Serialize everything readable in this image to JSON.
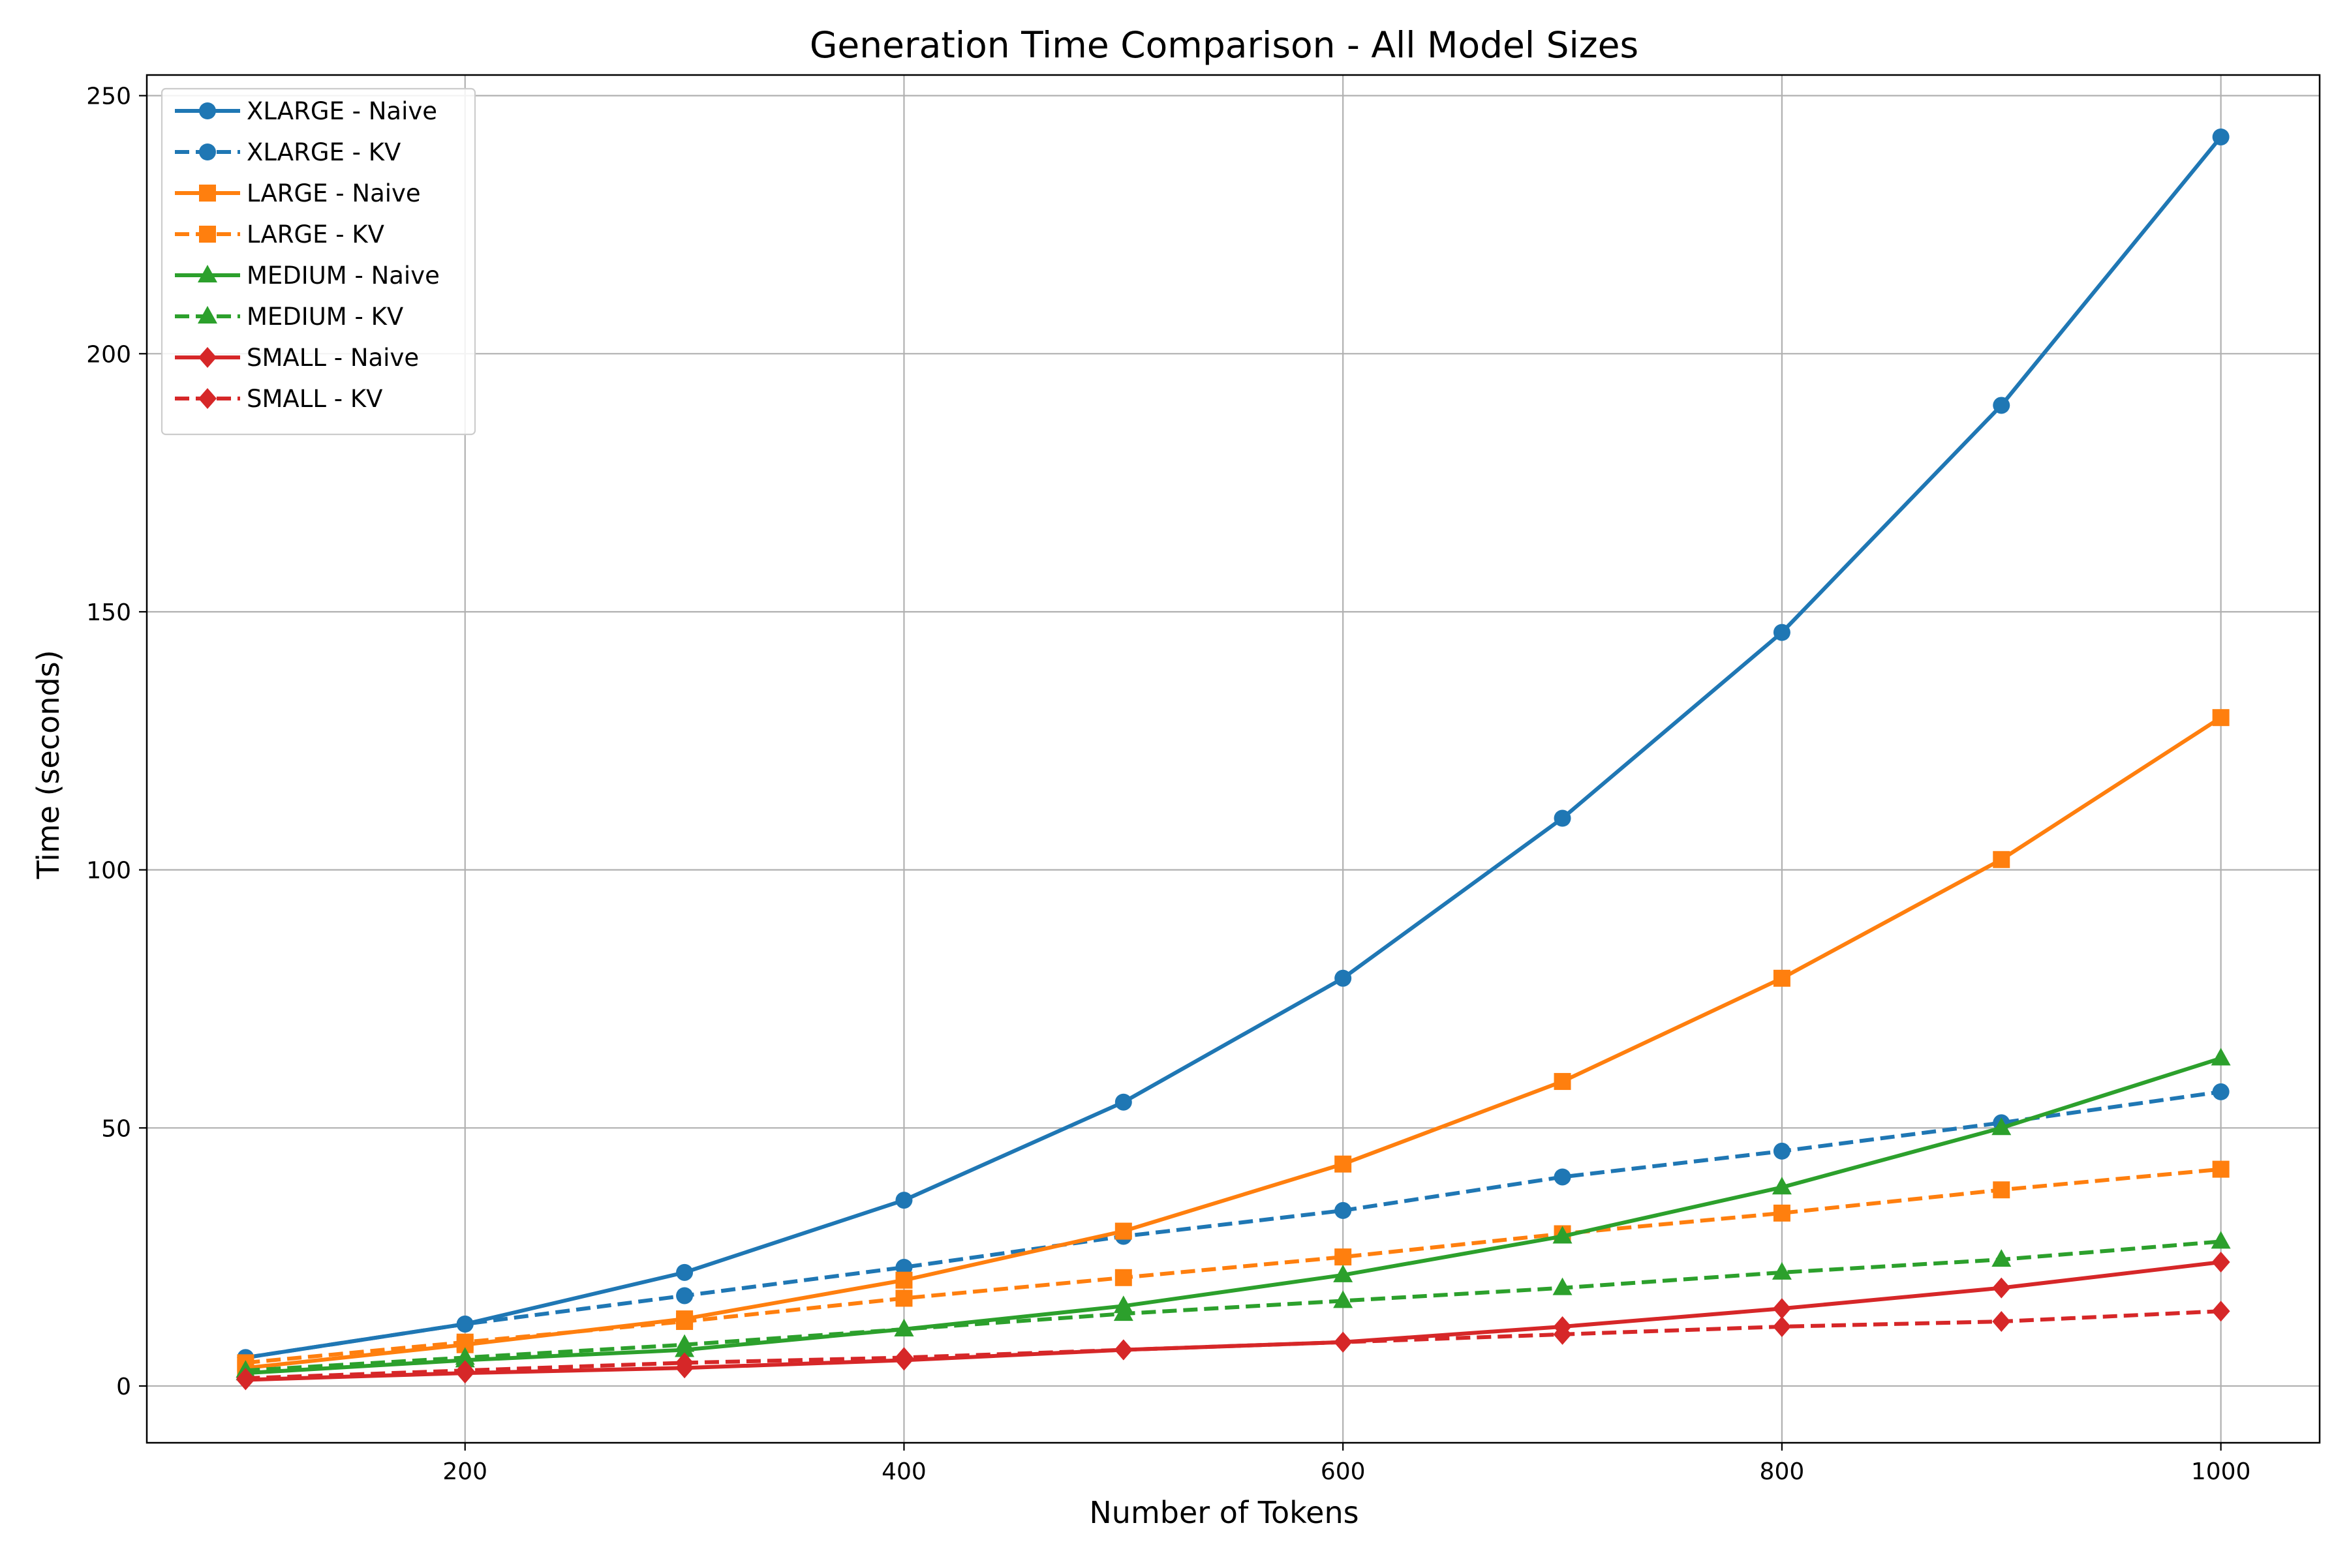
{
  "chart_data": {
    "type": "line",
    "title": "Generation Time Comparison - All Model Sizes",
    "xlabel": "Number of Tokens",
    "ylabel": "Time (seconds)",
    "xlim": [
      55,
      1045
    ],
    "ylim": [
      -11,
      254
    ],
    "xticks": [
      200,
      400,
      600,
      800,
      1000
    ],
    "yticks": [
      0,
      50,
      100,
      150,
      200,
      250
    ],
    "grid": true,
    "legend_position": "upper-left",
    "x": [
      100,
      200,
      300,
      400,
      500,
      600,
      700,
      800,
      900,
      1000
    ],
    "series": [
      {
        "name": "XLARGE - Naive",
        "color": "#1f77b4",
        "linestyle": "solid",
        "marker": "circle",
        "values": [
          5.5,
          12,
          22,
          36,
          55,
          79,
          110,
          146,
          190,
          242
        ]
      },
      {
        "name": "XLARGE - KV",
        "color": "#1f77b4",
        "linestyle": "dashed",
        "marker": "circle",
        "values": [
          5.5,
          12,
          17.5,
          23,
          29,
          34,
          40.5,
          45.5,
          51,
          57
        ]
      },
      {
        "name": "LARGE - Naive",
        "color": "#ff7f0e",
        "linestyle": "solid",
        "marker": "square",
        "values": [
          3.5,
          8,
          13,
          20.5,
          30,
          43,
          59,
          79,
          102,
          129.5
        ]
      },
      {
        "name": "LARGE - KV",
        "color": "#ff7f0e",
        "linestyle": "dashed",
        "marker": "square",
        "values": [
          4.5,
          8.5,
          12.5,
          17,
          21,
          25,
          29.5,
          33.5,
          38,
          42
        ]
      },
      {
        "name": "MEDIUM - Naive",
        "color": "#2ca02c",
        "linestyle": "solid",
        "marker": "triangle",
        "values": [
          2.5,
          5,
          7,
          11,
          15.5,
          21.5,
          29,
          38.5,
          50,
          63.5
        ]
      },
      {
        "name": "MEDIUM - KV",
        "color": "#2ca02c",
        "linestyle": "dashed",
        "marker": "triangle",
        "values": [
          3,
          5.5,
          8,
          11,
          14,
          16.5,
          19,
          22,
          24.5,
          28
        ]
      },
      {
        "name": "SMALL - Naive",
        "color": "#d62728",
        "linestyle": "solid",
        "marker": "diamond",
        "values": [
          1.2,
          2.5,
          3.5,
          5,
          7,
          8.5,
          11.5,
          15,
          19,
          24
        ]
      },
      {
        "name": "SMALL - KV",
        "color": "#d62728",
        "linestyle": "dashed",
        "marker": "diamond",
        "values": [
          1.5,
          3,
          4.5,
          5.5,
          7,
          8.5,
          10,
          11.5,
          12.5,
          14.5
        ]
      }
    ]
  }
}
